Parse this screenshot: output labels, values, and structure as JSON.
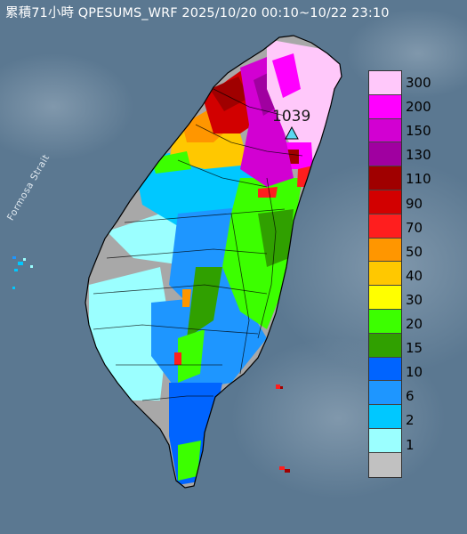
{
  "title": "累積71小時 QPESUMS_WRF 2025/10/20 00:10~10/22 23:10",
  "strait_label": "Formosa Strait",
  "station_label": "1039",
  "legend_unit_colors": [
    {
      "value": "300",
      "color": "#ffc8fa"
    },
    {
      "value": "200",
      "color": "#ff00ff"
    },
    {
      "value": "150",
      "color": "#d200d2"
    },
    {
      "value": "130",
      "color": "#a000a0"
    },
    {
      "value": "110",
      "color": "#a00000"
    },
    {
      "value": "90",
      "color": "#d20000"
    },
    {
      "value": "70",
      "color": "#ff1e1e"
    },
    {
      "value": "50",
      "color": "#ff9600"
    },
    {
      "value": "40",
      "color": "#ffc800"
    },
    {
      "value": "30",
      "color": "#ffff00"
    },
    {
      "value": "20",
      "color": "#3cff00"
    },
    {
      "value": "15",
      "color": "#30a000"
    },
    {
      "value": "10",
      "color": "#0064ff"
    },
    {
      "value": "6",
      "color": "#1e96ff"
    },
    {
      "value": "2",
      "color": "#00c8ff"
    },
    {
      "value": "1",
      "color": "#9bffff"
    },
    {
      "value": "",
      "color": "#c1c1c1"
    }
  ],
  "colors": {
    "sea": "#5d7a93",
    "land_nodata": "#a8a8a8",
    "outline": "#000000"
  }
}
